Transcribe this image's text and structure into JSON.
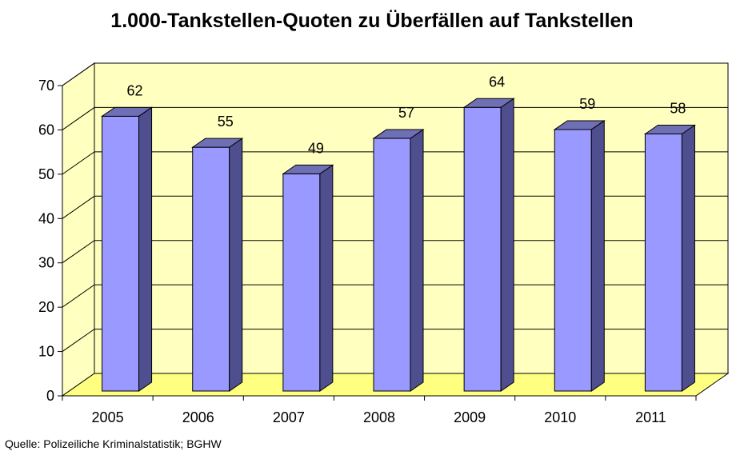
{
  "chart_data": {
    "type": "bar",
    "title": "1.000-Tankstellen-Quoten zu Überfällen auf Tankstellen",
    "categories": [
      "2005",
      "2006",
      "2007",
      "2008",
      "2009",
      "2010",
      "2011"
    ],
    "values": [
      62,
      55,
      49,
      57,
      64,
      59,
      58
    ],
    "data_labels": [
      "62",
      "55",
      "49",
      "57",
      "64",
      "59",
      "58"
    ],
    "xlabel": "",
    "ylabel": "",
    "ylim": [
      0,
      70
    ],
    "yticks": [
      0,
      10,
      20,
      30,
      40,
      50,
      60,
      70
    ],
    "ytick_labels": [
      "0",
      "10",
      "20",
      "30",
      "40",
      "50",
      "60",
      "70"
    ],
    "grid": true,
    "legend": "none",
    "style": "3d-column",
    "colors": {
      "bar_front": "#9999ff",
      "bar_side": "#4f4f8f",
      "bar_top": "#6f6fb5",
      "back_wall": "#ffffc0",
      "floor": "#ffff80"
    }
  },
  "source_note": "Quelle: Polizeiliche Kriminalstatistik; BGHW"
}
